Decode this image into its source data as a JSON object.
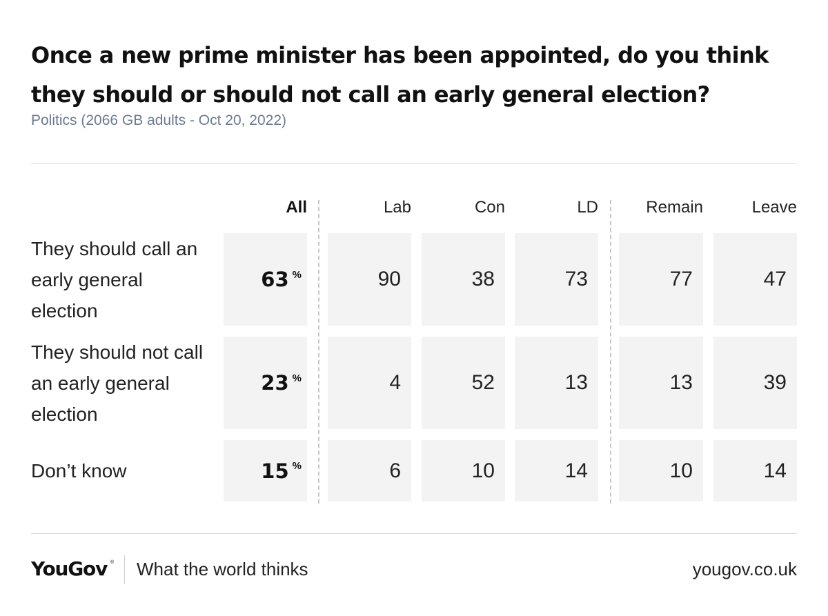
{
  "title": "Once a new prime minister has been appointed, do you think they should or should not call an early general election?",
  "subtitle": "Politics (2066 GB adults - Oct 20, 2022)",
  "footer": {
    "brand": "YouGov",
    "brand_mark": "®",
    "tagline": "What the world thinks",
    "site": "yougov.co.uk"
  },
  "chart_data": {
    "type": "table",
    "columns": [
      "All",
      "Lab",
      "Con",
      "LD",
      "Remain",
      "Leave"
    ],
    "unit": "%",
    "rows": [
      {
        "label": "They should call an early general election",
        "values": [
          63,
          90,
          38,
          73,
          77,
          47
        ]
      },
      {
        "label": "They should not call an early general election",
        "values": [
          23,
          4,
          52,
          13,
          13,
          39
        ]
      },
      {
        "label": "Don’t know",
        "values": [
          15,
          6,
          10,
          14,
          10,
          14
        ]
      }
    ]
  }
}
